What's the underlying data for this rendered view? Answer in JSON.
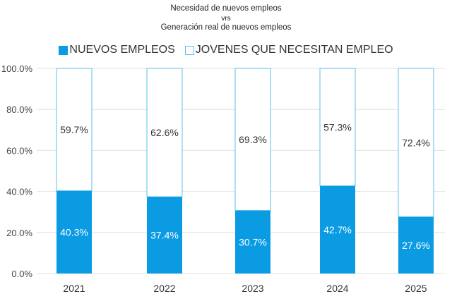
{
  "chart_data": {
    "type": "bar",
    "stacked": true,
    "title": [
      "Necesidad de nuevos empleos",
      "vrs",
      "Generación real de nuevos empleos"
    ],
    "categories": [
      "2021",
      "2022",
      "2023",
      "2024",
      "2025"
    ],
    "series": [
      {
        "name": "NUEVOS EMPLEOS",
        "values": [
          40.3,
          37.4,
          30.7,
          42.7,
          27.6
        ],
        "labels": [
          "40.3%",
          "37.4%",
          "30.7%",
          "42.7%",
          "27.6%"
        ],
        "color": "#0a9be3"
      },
      {
        "name": "JOVENES QUE NECESITAN EMPLEO",
        "values": [
          59.7,
          62.6,
          69.3,
          57.3,
          72.4
        ],
        "labels": [
          "59.7%",
          "62.6%",
          "69.3%",
          "57.3%",
          "72.4%"
        ],
        "color": "#ffffff",
        "border": "#5bc0e8"
      }
    ],
    "ylim": [
      0,
      100
    ],
    "yticks": [
      "0.0%",
      "20.0%",
      "40.0%",
      "60.0%",
      "80.0%",
      "100.0%"
    ],
    "xlabel": "",
    "ylabel": "",
    "grid": true,
    "legend": "top-center"
  }
}
